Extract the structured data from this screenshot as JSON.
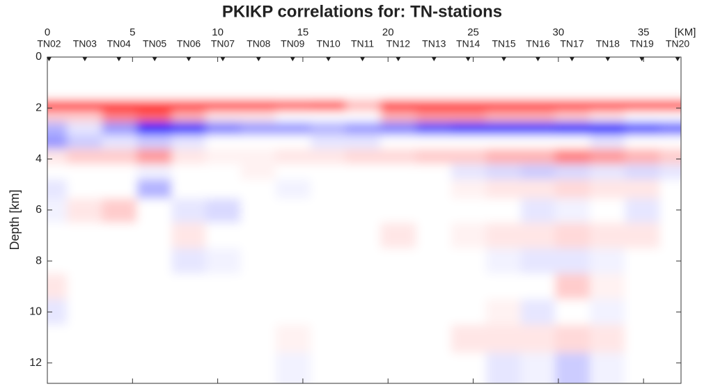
{
  "chart_data": {
    "type": "heatmap",
    "title": "PKIKP correlations for: TN-stations",
    "ylabel": "Depth [km]",
    "x_unit": "[KM]",
    "stations": [
      "TN02",
      "TN03",
      "TN04",
      "TN05",
      "TN06",
      "TN07",
      "TN08",
      "TN09",
      "TN10",
      "TN11",
      "TN12",
      "TN13",
      "TN14",
      "TN15",
      "TN16",
      "TN17",
      "TN18",
      "TN19",
      "TN20"
    ],
    "x": [
      0.1,
      2.2,
      4.2,
      6.3,
      8.3,
      10.3,
      12.4,
      14.4,
      16.5,
      18.5,
      20.6,
      22.7,
      24.7,
      26.8,
      28.8,
      30.8,
      32.9,
      34.9,
      37.0
    ],
    "y": [
      0.5,
      1.5,
      1.9,
      2.3,
      2.8,
      3.3,
      3.9,
      4.5,
      5.1,
      6.0,
      7.0,
      8.0,
      9.0,
      10.0,
      11.0,
      12.2
    ],
    "z": [
      [
        0,
        0,
        0,
        0,
        0,
        0,
        0,
        0,
        0,
        0,
        0,
        0,
        0,
        0,
        0,
        0,
        0,
        0,
        0
      ],
      [
        0,
        0,
        0,
        0,
        0,
        0,
        0,
        0,
        0,
        0,
        0,
        0,
        0,
        0,
        0,
        0,
        0,
        0,
        0
      ],
      [
        1,
        1,
        1,
        1,
        1,
        1,
        1,
        0.8,
        0.9,
        0.3,
        1,
        1,
        1,
        1,
        1,
        1,
        1,
        1,
        1
      ],
      [
        0.2,
        0.2,
        0.5,
        0.6,
        0.3,
        0.1,
        0.1,
        0,
        0,
        0,
        0.3,
        0.4,
        0.4,
        0.3,
        0.3,
        0.2,
        0.1,
        0,
        0
      ],
      [
        -0.3,
        -0.1,
        -0.4,
        -0.9,
        -0.8,
        -0.5,
        -0.4,
        -0.4,
        -0.3,
        -0.4,
        -0.5,
        -0.7,
        -0.8,
        -0.8,
        -0.8,
        -0.9,
        -0.9,
        -0.7,
        -0.6
      ],
      [
        -0.4,
        -0.2,
        -0.1,
        -0.2,
        -0.1,
        0,
        0,
        0,
        -0.1,
        -0.1,
        0,
        0,
        0,
        0,
        0,
        0,
        -0.1,
        0,
        0
      ],
      [
        0.1,
        0.2,
        0.2,
        0.4,
        0.1,
        0.05,
        0.05,
        0.1,
        0.1,
        0.15,
        0.15,
        0.2,
        0.2,
        0.3,
        0.3,
        0.5,
        0.4,
        0.3,
        0.2
      ],
      [
        0,
        0,
        0,
        -0.05,
        0,
        0,
        0.05,
        0,
        0,
        0,
        0,
        0,
        -0.1,
        -0.15,
        -0.2,
        -0.15,
        -0.1,
        -0.15,
        -0.1
      ],
      [
        -0.1,
        0,
        0,
        -0.3,
        0,
        0,
        0,
        -0.05,
        0,
        0,
        0,
        0,
        0.05,
        0.1,
        0.1,
        0.15,
        0.1,
        0.1,
        0
      ],
      [
        -0.05,
        0.1,
        0.2,
        0,
        -0.1,
        -0.15,
        0,
        0,
        0,
        0,
        0,
        0,
        0,
        0,
        -0.1,
        -0.05,
        0,
        -0.1,
        0
      ],
      [
        0,
        0,
        0,
        0,
        0.1,
        0,
        0,
        0,
        0,
        0,
        0.1,
        0,
        0.05,
        0.1,
        0.1,
        0.15,
        0.1,
        0.1,
        0
      ],
      [
        0,
        0,
        0,
        0,
        -0.1,
        -0.05,
        0,
        0,
        0,
        0,
        0,
        0,
        0,
        -0.05,
        -0.1,
        -0.1,
        -0.05,
        0,
        0
      ],
      [
        0.1,
        0,
        0,
        0,
        0,
        0,
        0,
        0,
        0,
        0,
        0,
        0,
        0,
        0,
        0,
        0.2,
        0.05,
        0,
        0
      ],
      [
        -0.1,
        0,
        0,
        0,
        0,
        0,
        0,
        0,
        0,
        0,
        0,
        0,
        0,
        0.05,
        -0.1,
        0,
        -0.05,
        0,
        0
      ],
      [
        0,
        0,
        0,
        0,
        0,
        0,
        0,
        0.05,
        0,
        0,
        0,
        0,
        0.1,
        0.1,
        0.1,
        0.15,
        0.1,
        0,
        0
      ],
      [
        0,
        0,
        0,
        0,
        0,
        0,
        0,
        -0.05,
        0,
        0,
        0,
        0,
        0,
        -0.1,
        -0.05,
        -0.2,
        -0.05,
        0,
        0
      ]
    ],
    "clim": [
      -1,
      1
    ],
    "xlim": [
      0,
      37.2
    ],
    "xticks": [
      0,
      5,
      10,
      15,
      20,
      25,
      30,
      35
    ],
    "ylim": [
      0,
      12.8
    ],
    "yticks": [
      0,
      2,
      4,
      6,
      8,
      10,
      12
    ],
    "y_inverted": true
  }
}
